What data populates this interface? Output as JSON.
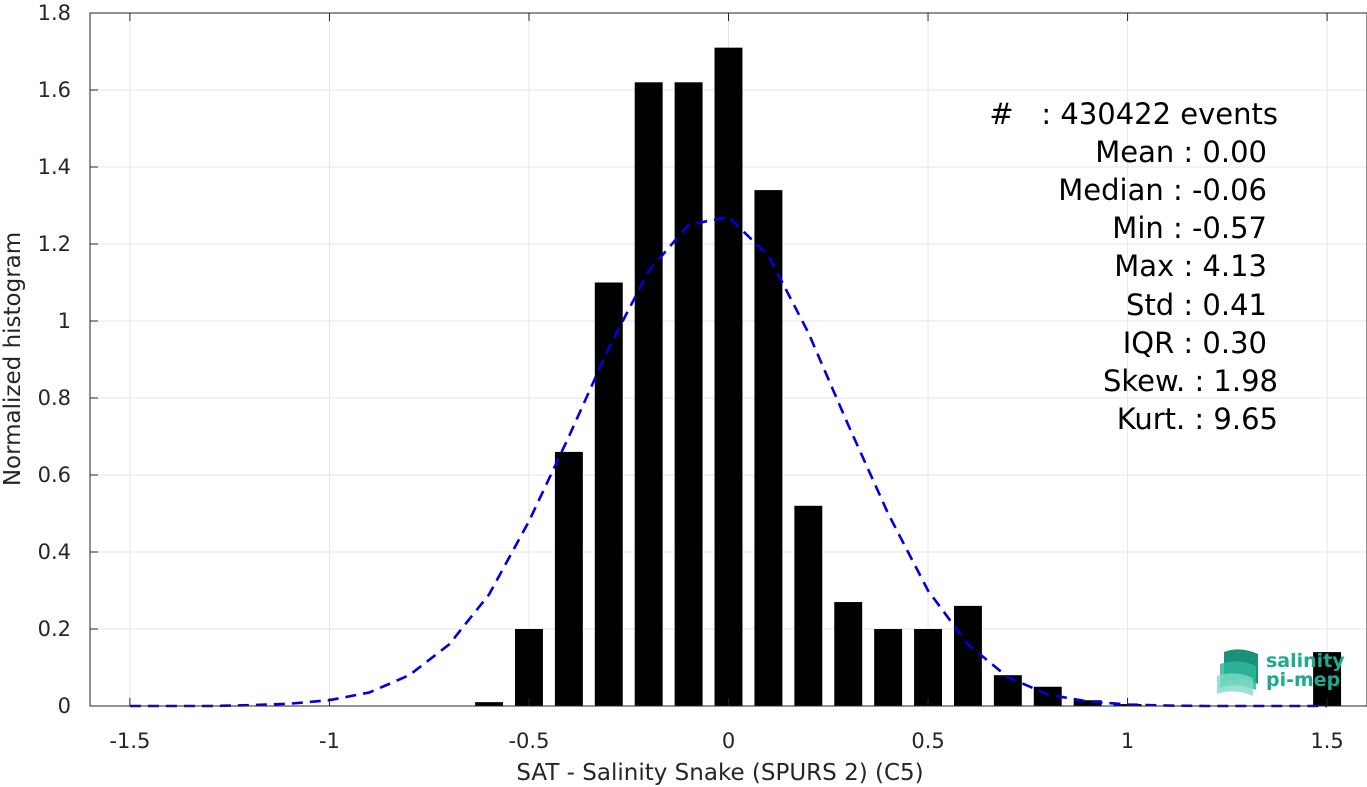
{
  "chart_data": {
    "type": "bar",
    "xlabel": "SAT - Salinity Snake (SPURS 2) (C5)",
    "ylabel": "Normalized histogram",
    "xlim": [
      -1.6,
      1.6
    ],
    "ylim": [
      0,
      1.8
    ],
    "grid": true,
    "x_ticks": [
      "-1.5",
      "-1",
      "-0.5",
      "0",
      "0.5",
      "1",
      "1.5"
    ],
    "y_ticks": [
      "0",
      "0.2",
      "0.4",
      "0.6",
      "0.8",
      "1",
      "1.2",
      "1.4",
      "1.6",
      "1.8"
    ],
    "bar_width": 0.07,
    "series": [
      {
        "kind": "bar",
        "color": "#000000",
        "x": [
          -0.6,
          -0.5,
          -0.4,
          -0.3,
          -0.2,
          -0.1,
          0.0,
          0.1,
          0.2,
          0.3,
          0.4,
          0.5,
          0.6,
          0.7,
          0.8,
          0.9,
          1.0,
          1.5
        ],
        "values": [
          0.01,
          0.2,
          0.66,
          1.1,
          1.62,
          1.62,
          1.71,
          1.34,
          0.52,
          0.27,
          0.2,
          0.2,
          0.26,
          0.08,
          0.05,
          0.015,
          0.005,
          0.14
        ]
      },
      {
        "kind": "line",
        "style": "dashed",
        "color": "#0000dd",
        "x": [
          -1.5,
          -1.4,
          -1.3,
          -1.2,
          -1.1,
          -1.0,
          -0.9,
          -0.8,
          -0.7,
          -0.6,
          -0.5,
          -0.4,
          -0.3,
          -0.2,
          -0.1,
          0.0,
          0.1,
          0.2,
          0.3,
          0.4,
          0.5,
          0.6,
          0.7,
          0.8,
          0.9,
          1.0,
          1.1,
          1.2,
          1.3,
          1.4,
          1.5
        ],
        "values": [
          0.0,
          0.0,
          0.0,
          0.002,
          0.006,
          0.015,
          0.035,
          0.08,
          0.16,
          0.29,
          0.48,
          0.7,
          0.93,
          1.13,
          1.25,
          1.27,
          1.17,
          0.97,
          0.73,
          0.5,
          0.3,
          0.16,
          0.075,
          0.03,
          0.012,
          0.004,
          0.001,
          0.0,
          0.0,
          0.0,
          0.0
        ]
      }
    ],
    "annotations": {
      "events": "#   : 430422 events",
      "mean": "Mean : 0.00",
      "median": "Median : -0.06",
      "min": "Min : -0.57",
      "max": "Max : 4.13",
      "std": "Std : 0.41",
      "iqr": "IQR : 0.30",
      "skew": "Skew. : 1.98",
      "kurt": "Kurt. : 9.65"
    }
  },
  "logo": {
    "line1": "salinity",
    "line2": "pi-mep",
    "color": "#1fa98f"
  }
}
